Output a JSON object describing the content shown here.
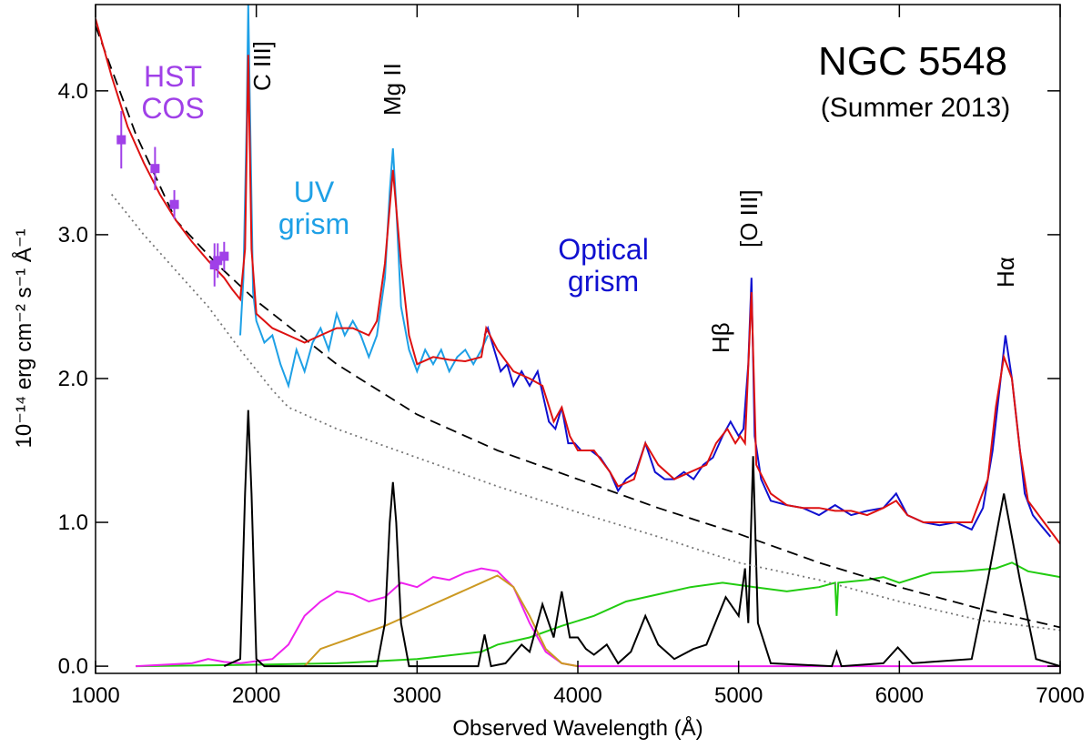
{
  "chart_data": {
    "type": "line",
    "xlabel": "Observed Wavelength (Å)",
    "ylabel": "10⁻¹⁴ erg cm⁻² s⁻¹ Å⁻¹",
    "xlim": [
      1000,
      7000
    ],
    "ylim": [
      -0.05,
      4.6
    ],
    "xticks": [
      1000,
      2000,
      3000,
      4000,
      5000,
      6000,
      7000
    ],
    "yticks": [
      {
        "value": 0,
        "label": "0.0"
      },
      {
        "value": 1,
        "label": "1.0"
      },
      {
        "value": 2,
        "label": "2.0"
      },
      {
        "value": 3,
        "label": "3.0"
      },
      {
        "value": 4,
        "label": "4.0"
      }
    ],
    "annotations": [
      {
        "text": [
          "NGC 5548"
        ],
        "color": "#000000"
      },
      {
        "text": [
          "(Summer 2013)"
        ],
        "color": "#000000"
      },
      {
        "text": [
          "HST",
          "COS"
        ],
        "color": "#a040e8"
      },
      {
        "text": [
          "UV",
          "grism"
        ],
        "color": "#1ea0e6"
      },
      {
        "text": [
          "Optical",
          "grism"
        ],
        "color": "#1010d0"
      },
      {
        "text": [
          "C III]"
        ],
        "color": "#000000"
      },
      {
        "text": [
          "Mg II"
        ],
        "color": "#000000"
      },
      {
        "text": [
          "Hβ"
        ],
        "color": "#000000"
      },
      {
        "text": [
          "[O III]"
        ],
        "color": "#000000"
      },
      {
        "text": [
          "Hα"
        ],
        "color": "#000000"
      }
    ],
    "series": [
      {
        "style": "solid",
        "color": "#22cc11",
        "x": [
          1250,
          2000,
          2500,
          3000,
          3400,
          3500,
          3700,
          3900,
          4100,
          4300,
          4500,
          4700,
          4900,
          5100,
          5300,
          5500,
          5600,
          5610,
          5620,
          5800,
          5900,
          6000,
          6200,
          6400,
          6600,
          6700,
          6800,
          7000
        ],
        "values": [
          0,
          0.01,
          0.02,
          0.05,
          0.1,
          0.15,
          0.2,
          0.28,
          0.35,
          0.45,
          0.5,
          0.55,
          0.58,
          0.55,
          0.52,
          0.55,
          0.58,
          0.35,
          0.58,
          0.6,
          0.62,
          0.58,
          0.65,
          0.66,
          0.68,
          0.72,
          0.66,
          0.62
        ]
      },
      {
        "style": "solid",
        "color": "#ee22ee",
        "x": [
          1250,
          1600,
          1700,
          1800,
          1900,
          2100,
          2200,
          2300,
          2400,
          2500,
          2600,
          2700,
          2800,
          2900,
          3000,
          3100,
          3200,
          3300,
          3400,
          3500,
          3600,
          3700,
          3800,
          3900,
          4000,
          7000
        ],
        "values": [
          0,
          0.02,
          0.05,
          0.03,
          0.02,
          0.05,
          0.15,
          0.35,
          0.45,
          0.52,
          0.5,
          0.45,
          0.48,
          0.58,
          0.55,
          0.62,
          0.6,
          0.65,
          0.68,
          0.66,
          0.55,
          0.3,
          0.1,
          0.02,
          0,
          0
        ]
      },
      {
        "style": "solid",
        "color": "#cc9922",
        "x": [
          2300,
          2400,
          2600,
          2800,
          3000,
          3200,
          3400,
          3500,
          3600,
          3700,
          3800,
          3900,
          4000
        ],
        "values": [
          0,
          0.12,
          0.2,
          0.28,
          0.38,
          0.48,
          0.58,
          0.63,
          0.55,
          0.35,
          0.12,
          0.02,
          0
        ]
      },
      {
        "style": "solid",
        "color": "#000000",
        "x": [
          1800,
          1900,
          1930,
          1950,
          1970,
          2000,
          2050,
          2750,
          2800,
          2830,
          2850,
          2870,
          2900,
          2950,
          3380,
          3420,
          3460,
          3550,
          3650,
          3700,
          3780,
          3850,
          3900,
          3950,
          4000,
          4050,
          4100,
          4180,
          4250,
          4330,
          4420,
          4500,
          4600,
          4720,
          4800,
          4920,
          5000,
          5040,
          5060,
          5090,
          5120,
          5200,
          5580,
          5610,
          5640,
          5900,
          5990,
          6080,
          6450,
          6550,
          6650,
          6750,
          6850,
          7000
        ],
        "values": [
          0,
          0.05,
          1.2,
          1.78,
          1.2,
          0.05,
          0,
          0,
          0.3,
          1.0,
          1.28,
          1.0,
          0.3,
          0,
          0,
          0.22,
          0,
          0.02,
          0.15,
          0.1,
          0.43,
          0.2,
          0.52,
          0.2,
          0.2,
          0.12,
          0.08,
          0.15,
          0.02,
          0.1,
          0.35,
          0.15,
          0.05,
          0.12,
          0.15,
          0.48,
          0.35,
          0.68,
          0.3,
          1.46,
          0.3,
          0.02,
          0,
          0.1,
          0,
          0.02,
          0.13,
          0.02,
          0.05,
          0.6,
          1.2,
          0.6,
          0.05,
          0
        ]
      },
      {
        "style": "dotted",
        "color": "#777777",
        "x": [
          1100,
          1300,
          1500,
          1700,
          1900,
          2100,
          2200,
          2500,
          3000,
          3500,
          4000,
          4500,
          5000,
          5500,
          6000,
          6500,
          7000
        ],
        "values": [
          3.28,
          3.0,
          2.75,
          2.5,
          2.2,
          1.92,
          1.8,
          1.65,
          1.45,
          1.25,
          1.07,
          0.9,
          0.72,
          0.6,
          0.45,
          0.32,
          0.25
        ]
      },
      {
        "style": "dashed",
        "color": "#000000",
        "x": [
          1000,
          1250,
          1500,
          1750,
          2000,
          2500,
          3000,
          3500,
          4000,
          4500,
          5000,
          5500,
          6000,
          6500,
          7000
        ],
        "values": [
          4.45,
          3.7,
          3.1,
          2.8,
          2.54,
          2.1,
          1.75,
          1.5,
          1.3,
          1.1,
          0.92,
          0.72,
          0.55,
          0.4,
          0.27
        ]
      },
      {
        "style": "solid",
        "color": "#1ea0e6",
        "x": [
          1900,
          1920,
          1940,
          1950,
          1960,
          1980,
          2000,
          2050,
          2100,
          2150,
          2200,
          2250,
          2300,
          2350,
          2400,
          2450,
          2500,
          2550,
          2600,
          2650,
          2700,
          2750,
          2800,
          2830,
          2850,
          2870,
          2900,
          2950,
          3000,
          3050,
          3100,
          3150,
          3200,
          3250,
          3300,
          3350,
          3400,
          3440
        ],
        "values": [
          2.3,
          2.7,
          3.8,
          4.6,
          3.9,
          2.6,
          2.4,
          2.25,
          2.3,
          2.1,
          1.95,
          2.2,
          2.05,
          2.25,
          2.35,
          2.2,
          2.45,
          2.3,
          2.4,
          2.3,
          2.15,
          2.3,
          2.7,
          3.3,
          3.6,
          3.2,
          2.5,
          2.2,
          2.05,
          2.2,
          2.1,
          2.2,
          2.05,
          2.15,
          2.2,
          2.1,
          2.2,
          2.3
        ]
      },
      {
        "style": "solid",
        "color": "#1010d0",
        "x": [
          3420,
          3440,
          3480,
          3520,
          3560,
          3600,
          3650,
          3700,
          3750,
          3780,
          3820,
          3860,
          3900,
          3940,
          3980,
          4020,
          4080,
          4140,
          4200,
          4250,
          4300,
          4360,
          4420,
          4480,
          4540,
          4600,
          4660,
          4720,
          4780,
          4840,
          4900,
          4950,
          5000,
          5030,
          5060,
          5080,
          5100,
          5140,
          5200,
          5300,
          5400,
          5500,
          5600,
          5700,
          5800,
          5900,
          5980,
          6050,
          6150,
          6250,
          6350,
          6450,
          6520,
          6580,
          6620,
          6660,
          6700,
          6740,
          6780,
          6830,
          6880,
          6940
        ],
        "values": [
          2.3,
          2.35,
          2.2,
          2.05,
          2.1,
          1.95,
          2.05,
          1.95,
          2.05,
          1.9,
          1.7,
          1.65,
          1.8,
          1.55,
          1.55,
          1.5,
          1.5,
          1.45,
          1.35,
          1.22,
          1.3,
          1.35,
          1.55,
          1.35,
          1.3,
          1.3,
          1.35,
          1.3,
          1.4,
          1.45,
          1.6,
          1.7,
          1.6,
          1.65,
          2.1,
          2.7,
          1.6,
          1.3,
          1.15,
          1.12,
          1.1,
          1.05,
          1.12,
          1.05,
          1.08,
          1.1,
          1.2,
          1.05,
          1.0,
          0.98,
          1.0,
          0.95,
          1.1,
          1.5,
          1.9,
          2.3,
          2.0,
          1.6,
          1.2,
          1.05,
          0.98,
          0.9
        ]
      },
      {
        "style": "solid",
        "color": "#dd1111",
        "x": [
          1000,
          1100,
          1200,
          1300,
          1400,
          1500,
          1600,
          1700,
          1800,
          1850,
          1900,
          1930,
          1950,
          1970,
          2000,
          2100,
          2200,
          2300,
          2400,
          2500,
          2600,
          2700,
          2750,
          2800,
          2850,
          2900,
          2950,
          3000,
          3100,
          3200,
          3300,
          3400,
          3430,
          3500,
          3600,
          3700,
          3780,
          3850,
          3900,
          3950,
          4000,
          4100,
          4200,
          4250,
          4350,
          4420,
          4500,
          4600,
          4700,
          4800,
          4860,
          4930,
          4980,
          5010,
          5040,
          5080,
          5110,
          5200,
          5300,
          5400,
          5500,
          5600,
          5700,
          5800,
          5900,
          5980,
          6050,
          6150,
          6300,
          6450,
          6550,
          6600,
          6650,
          6700,
          6750,
          6800,
          6900,
          7000
        ],
        "values": [
          4.5,
          4.1,
          3.75,
          3.5,
          3.28,
          3.1,
          2.95,
          2.82,
          2.7,
          2.62,
          2.55,
          2.9,
          4.25,
          2.9,
          2.45,
          2.35,
          2.3,
          2.25,
          2.3,
          2.35,
          2.35,
          2.3,
          2.4,
          2.8,
          3.45,
          2.8,
          2.3,
          2.1,
          2.15,
          2.13,
          2.12,
          2.15,
          2.35,
          2.2,
          2.05,
          2.0,
          1.95,
          1.7,
          1.8,
          1.6,
          1.5,
          1.5,
          1.35,
          1.25,
          1.3,
          1.55,
          1.4,
          1.3,
          1.35,
          1.4,
          1.55,
          1.65,
          1.55,
          1.6,
          1.55,
          2.6,
          1.4,
          1.2,
          1.12,
          1.1,
          1.1,
          1.08,
          1.08,
          1.05,
          1.1,
          1.15,
          1.05,
          1.0,
          1.0,
          1.0,
          1.3,
          1.8,
          2.15,
          2.0,
          1.5,
          1.15,
          1.0,
          0.85
        ]
      }
    ],
    "points": {
      "color": "#a040e8",
      "x": [
        1160,
        1370,
        1490,
        1740,
        1760,
        1800
      ],
      "values": [
        3.66,
        3.46,
        3.21,
        2.79,
        2.82,
        2.85
      ],
      "errors": [
        0.2,
        0.15,
        0.1,
        0.15,
        0.12,
        0.1
      ]
    }
  }
}
